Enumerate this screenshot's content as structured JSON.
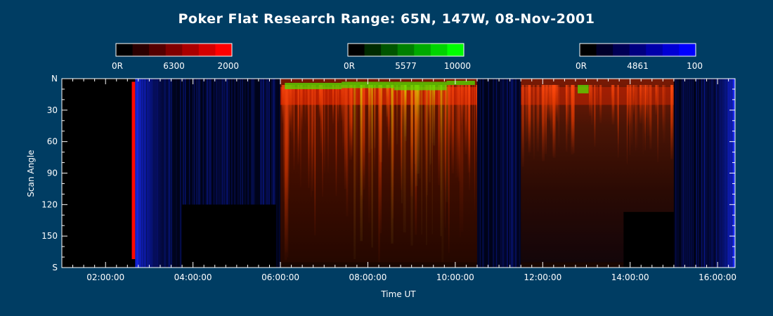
{
  "colors": {
    "background": "#003d63",
    "text": "#ffffff",
    "red_scale": [
      "#000000",
      "#2b0000",
      "#550000",
      "#800000",
      "#aa0000",
      "#d40000",
      "#ff0000"
    ],
    "green_scale": [
      "#000000",
      "#002b00",
      "#005500",
      "#008000",
      "#00aa00",
      "#00d400",
      "#00ff00"
    ],
    "blue_scale": [
      "#000000",
      "#00002b",
      "#000055",
      "#000080",
      "#0000aa",
      "#0000d4",
      "#0000ff"
    ]
  },
  "chart_data": {
    "type": "heatmap",
    "title": "Poker Flat Research Range: 65N, 147W, 08-Nov-2001",
    "xlabel": "Time UT",
    "ylabel": "Scan Angle",
    "x_ticks": [
      "02:00:00",
      "04:00:00",
      "06:00:00",
      "08:00:00",
      "10:00:00",
      "12:00:00",
      "14:00:00",
      "16:00:00"
    ],
    "x_tick_hours": [
      2,
      4,
      6,
      8,
      10,
      12,
      14,
      16
    ],
    "xlim_hours": [
      1.0,
      16.4
    ],
    "y_ticks": [
      "N",
      "30",
      "60",
      "90",
      "120",
      "150",
      "S"
    ],
    "y_tick_values": [
      0,
      30,
      60,
      90,
      120,
      150,
      180
    ],
    "ylim": [
      0,
      180
    ],
    "colorbars": [
      {
        "name": "red",
        "min_label": "0R",
        "mid_label": "6300",
        "max_label": "2000"
      },
      {
        "name": "green",
        "min_label": "0R",
        "mid_label": "5577",
        "max_label": "10000"
      },
      {
        "name": "blue",
        "min_label": "0R",
        "mid_label": "4861",
        "max_label": "100"
      }
    ],
    "segments": [
      {
        "kind": "none",
        "start": 1.0,
        "end": 2.6
      },
      {
        "kind": "red_band",
        "start": 2.6,
        "end": 2.68
      },
      {
        "kind": "blue",
        "start": 2.68,
        "end": 6.0
      },
      {
        "kind": "aurora",
        "start": 6.0,
        "end": 10.5
      },
      {
        "kind": "blue",
        "start": 10.5,
        "end": 11.5
      },
      {
        "kind": "aurora_weak",
        "start": 11.5,
        "end": 15.0
      },
      {
        "kind": "blue",
        "start": 15.0,
        "end": 16.4
      }
    ],
    "gaps": [
      {
        "start": 3.75,
        "end": 5.9,
        "angle_from": 120,
        "angle_to": 180
      },
      {
        "start": 13.85,
        "end": 15.0,
        "angle_from": 127,
        "angle_to": 180
      }
    ]
  }
}
